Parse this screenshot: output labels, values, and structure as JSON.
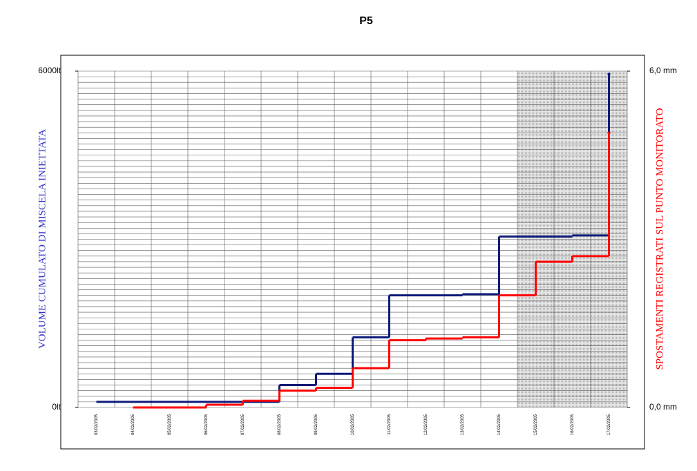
{
  "chart_data": {
    "type": "step",
    "title": "P5",
    "ylabel": "VOLUME CUMULATO DI MISCELA INIETTATA",
    "ylabel_color": "#3333cc",
    "y2label": "SPOSTAMENTI REGISTRATI SUL PUNTO MONITORATO",
    "y2label_color": "#ff0000",
    "categories": [
      "03/02/2005",
      "04/02/2005",
      "05/02/2005",
      "06/02/2005",
      "07/02/2005",
      "08/02/2005",
      "09/02/2005",
      "10/02/2005",
      "11/02/2005",
      "12/02/2005",
      "13/02/2005",
      "14/02/2005",
      "15/02/2005",
      "16/02/2005",
      "17/02/2005"
    ],
    "series": [
      {
        "name": "Volume",
        "color": "#0d1a7a",
        "values": [
          100,
          100,
          100,
          100,
          100,
          400,
          600,
          1250,
          2000,
          2000,
          2020,
          3050,
          3050,
          3070,
          5950
        ]
      },
      {
        "name": "Spostamenti",
        "color": "#ff0000",
        "axis": "y2",
        "values": [
          null,
          0.0,
          0.0,
          0.05,
          0.12,
          0.3,
          0.35,
          0.7,
          1.2,
          1.23,
          1.25,
          2.0,
          2.6,
          2.7,
          4.9
        ]
      }
    ],
    "ylim": [
      0,
      6000
    ],
    "yticks": [
      {
        "value": 0,
        "label": "0lt"
      },
      {
        "value": 6000,
        "label": "6000lt"
      }
    ],
    "y2lim": [
      0,
      6
    ],
    "y2ticks": [
      {
        "value": 0,
        "label": "0,0 mm"
      },
      {
        "value": 6,
        "label": "6,0 mm"
      }
    ],
    "grid": true
  }
}
